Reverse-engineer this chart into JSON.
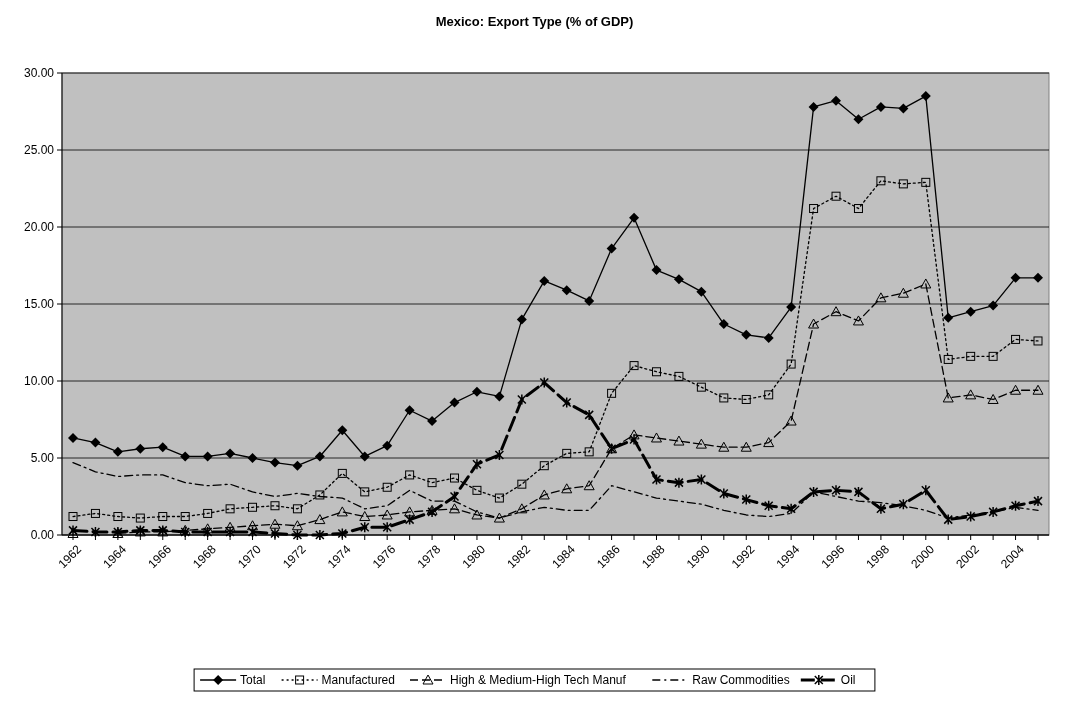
{
  "chart_data": {
    "type": "line",
    "title": "Mexico: Export Type (% of GDP)",
    "categories": [
      "1962",
      null,
      "1964",
      null,
      "1966",
      null,
      "1968",
      null,
      "1970",
      null,
      "1972",
      null,
      "1974",
      null,
      "1976",
      null,
      "1978",
      null,
      "1980",
      null,
      "1982",
      null,
      "1984",
      null,
      "1986",
      null,
      "1988",
      null,
      "1990",
      null,
      "1992",
      null,
      "1994",
      null,
      "1996",
      null,
      "1998",
      null,
      "2000",
      null,
      "2002",
      null,
      "2004",
      null
    ],
    "series": [
      {
        "name": "Total",
        "color": "#000000",
        "marker": "diamond",
        "line_style": "solid",
        "values": [
          6.3,
          6.0,
          5.4,
          5.6,
          5.7,
          5.1,
          5.1,
          5.3,
          5.0,
          4.7,
          4.5,
          5.1,
          6.8,
          5.1,
          5.8,
          8.1,
          7.4,
          8.6,
          9.3,
          9.0,
          14.0,
          16.5,
          15.9,
          15.2,
          18.6,
          20.6,
          17.2,
          16.6,
          15.8,
          13.7,
          13.0,
          12.8,
          14.8,
          27.8,
          28.2,
          27.0,
          27.8,
          27.7,
          28.5,
          14.1,
          14.5,
          14.9,
          16.7,
          16.7
        ]
      },
      {
        "name": "Manufactured",
        "color": "#000000",
        "marker": "square",
        "line_style": "dotted",
        "values": [
          1.2,
          1.4,
          1.2,
          1.1,
          1.2,
          1.2,
          1.4,
          1.7,
          1.8,
          1.9,
          1.7,
          2.6,
          4.0,
          2.8,
          3.1,
          3.9,
          3.4,
          3.7,
          2.9,
          2.4,
          3.3,
          4.5,
          5.3,
          5.4,
          9.2,
          11.0,
          10.6,
          10.3,
          9.6,
          8.9,
          8.8,
          9.1,
          11.1,
          21.2,
          22.0,
          21.2,
          23.0,
          22.8,
          22.9,
          11.4,
          11.6,
          11.6,
          12.7,
          12.6
        ]
      },
      {
        "name": "High & Medium-High Tech Manuf",
        "color": "#000000",
        "marker": "triangle",
        "line_style": "dashed",
        "values": [
          0.1,
          null,
          0.1,
          0.2,
          0.2,
          0.3,
          0.4,
          0.5,
          0.6,
          0.7,
          0.6,
          1.0,
          1.5,
          1.2,
          1.3,
          1.5,
          1.6,
          1.7,
          1.3,
          1.1,
          1.7,
          2.6,
          3.0,
          3.2,
          5.6,
          6.5,
          6.3,
          6.1,
          5.9,
          5.7,
          5.7,
          6.0,
          7.4,
          13.7,
          14.5,
          13.9,
          15.4,
          15.7,
          16.3,
          8.9,
          9.1,
          8.8,
          9.4,
          9.4
        ]
      },
      {
        "name": "Raw Commodities",
        "color": "#000000",
        "marker": "none",
        "line_style": "dashed",
        "values": [
          4.7,
          4.1,
          3.8,
          3.9,
          3.9,
          3.4,
          3.2,
          3.3,
          2.8,
          2.5,
          2.7,
          2.5,
          2.4,
          1.7,
          1.9,
          2.9,
          2.2,
          2.2,
          1.5,
          1.1,
          1.5,
          1.8,
          1.6,
          1.6,
          3.2,
          2.8,
          2.4,
          2.2,
          2.0,
          1.6,
          1.3,
          1.2,
          1.4,
          2.8,
          2.5,
          2.2,
          2.1,
          1.9,
          1.6,
          1.1,
          1.3,
          1.5,
          1.8,
          1.6
        ]
      },
      {
        "name": "Oil",
        "color": "#000000",
        "marker": "cross",
        "line_style": "dashed",
        "values": [
          0.3,
          0.2,
          0.2,
          0.3,
          0.3,
          0.2,
          0.2,
          0.2,
          0.2,
          0.1,
          0.0,
          0.0,
          0.1,
          0.5,
          0.5,
          1.0,
          1.5,
          2.5,
          4.6,
          5.2,
          8.8,
          9.9,
          8.6,
          7.8,
          5.6,
          6.2,
          3.6,
          3.4,
          3.6,
          2.7,
          2.3,
          1.9,
          1.7,
          2.8,
          2.9,
          2.8,
          1.7,
          2.0,
          2.9,
          1.0,
          1.2,
          1.5,
          1.9,
          2.2
        ]
      }
    ],
    "ylim": [
      0,
      30
    ],
    "yticks": [
      {
        "value": 0,
        "label": "0.00"
      },
      {
        "value": 5,
        "label": "5.00"
      },
      {
        "value": 10,
        "label": "10.00"
      },
      {
        "value": 15,
        "label": "15.00"
      },
      {
        "value": 20,
        "label": "20.00"
      },
      {
        "value": 25,
        "label": "25.00"
      },
      {
        "value": 30,
        "label": "30.00"
      }
    ],
    "grid": "y",
    "legend": "bottom"
  }
}
